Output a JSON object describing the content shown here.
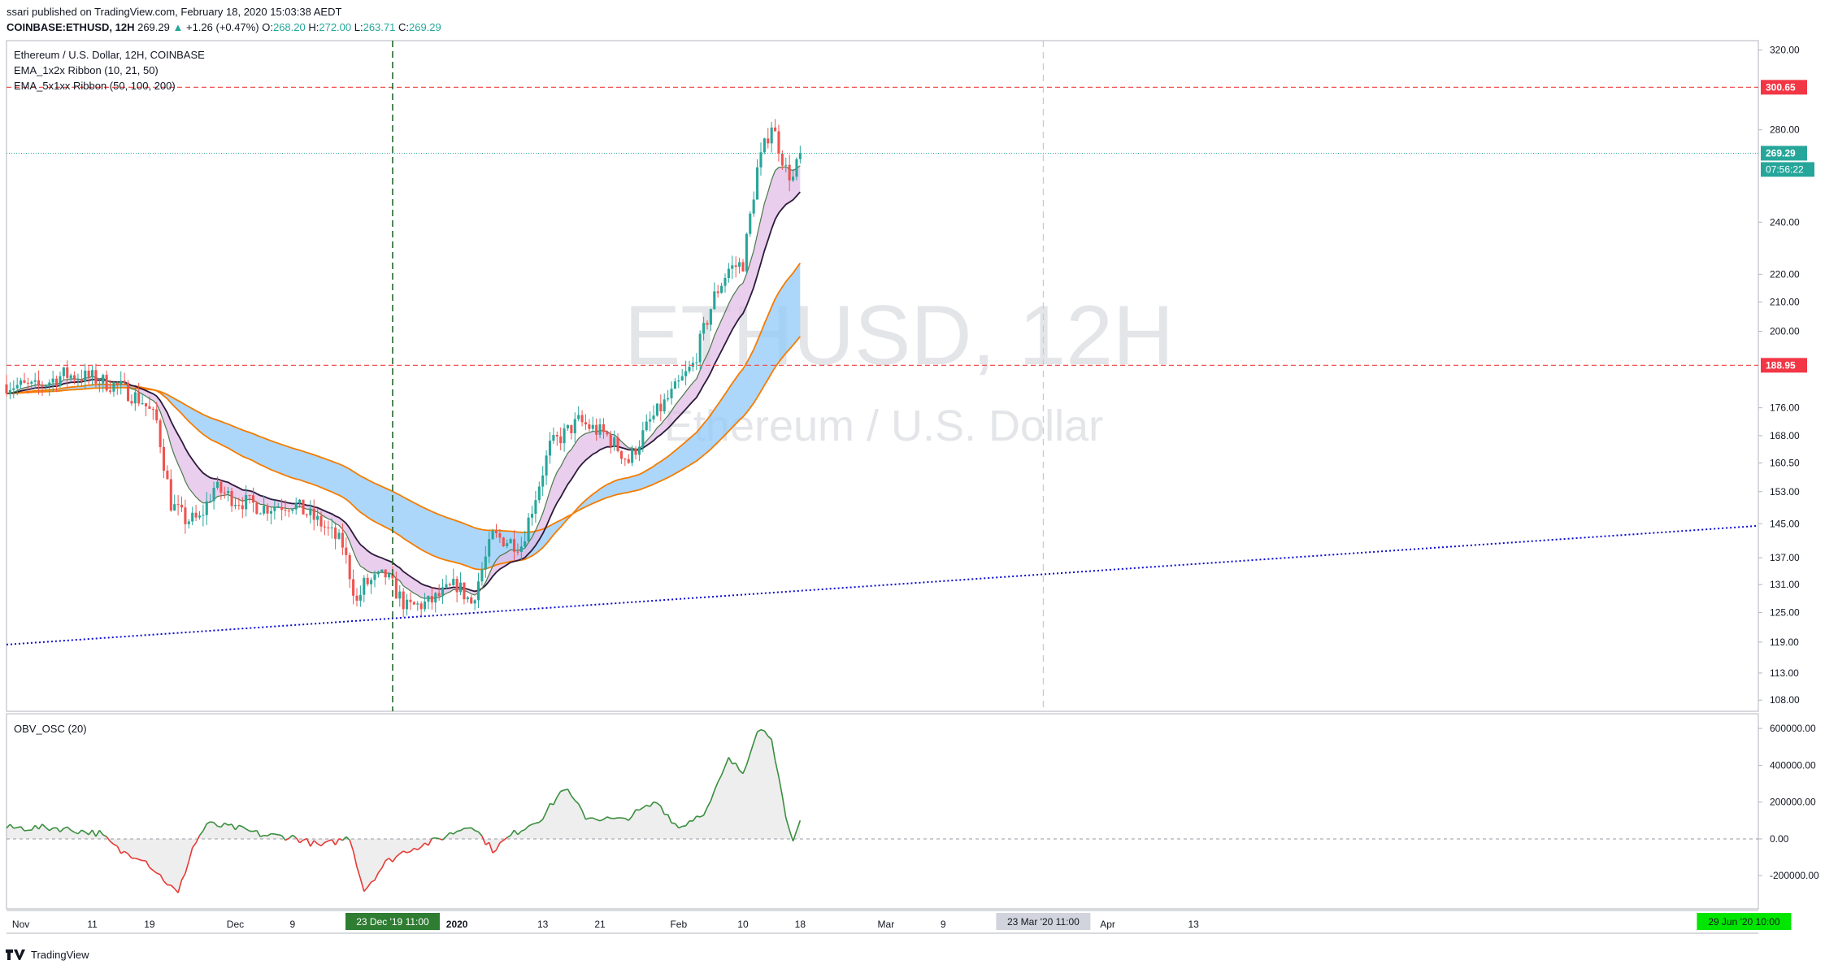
{
  "header": {
    "publisher_line": "ssari published on TradingView.com, February 18, 2020 15:03:38 AEDT",
    "symbol": "COINBASE:ETHUSD, 12H",
    "last": "269.29",
    "change_arrow": "▲",
    "change": "+1.26 (+0.47%)",
    "o_label": "O:",
    "o": "268.20",
    "h_label": "H:",
    "h": "272.00",
    "l_label": "L:",
    "l": "263.71",
    "c_label": "C:",
    "c": "269.29"
  },
  "legend": {
    "title": "Ethereum / U.S. Dollar, 12H, COINBASE",
    "ind1": "EMA_1x2x Ribbon (10, 21, 50)",
    "ind2": "EMA_5x1xx Ribbon (50, 100, 200)"
  },
  "watermark": {
    "symbol": "ETHUSD, 12H",
    "name": "Ethereum / U.S. Dollar"
  },
  "osc_legend": "OBV_OSC (20)",
  "footer": {
    "brand": "TradingView"
  },
  "colors": {
    "up": "#26a69a",
    "down": "#ef5350",
    "ribbon_fast": "#e1bee7",
    "ribbon_slow": "#90caf9",
    "ema_orange": "#f57c00",
    "ema_dark": "#2c1a3a",
    "hline": "#ef5350",
    "trend": "#0a0ad0",
    "osc_pos": "#388e3c",
    "osc_neg": "#e53935",
    "price_tag": "#26a69a",
    "vline": "#1b5e20"
  },
  "chart_data": {
    "type": "candlestick",
    "symbol": "COINBASE:ETHUSD",
    "interval": "12H",
    "scale": "log",
    "ylim": [
      106,
      325
    ],
    "y_ticks": [
      "320.00",
      "280.00",
      "240.00",
      "220.00",
      "210.00",
      "200.00",
      "176.00",
      "168.00",
      "160.50",
      "153.00",
      "145.00",
      "137.00",
      "131.00",
      "125.00",
      "119.00",
      "113.00",
      "108.00"
    ],
    "x_ticks": [
      "Nov",
      "11",
      "19",
      "Dec",
      "9",
      "2020",
      "13",
      "21",
      "Feb",
      "10",
      "18",
      "Mar",
      "9",
      "Apr",
      "13"
    ],
    "x_range": [
      "2019-10-30",
      "2020-07-01"
    ],
    "horizontal_levels": [
      300.65,
      188.95
    ],
    "level_labels": [
      "300.65",
      "188.95"
    ],
    "last_price": "269.29",
    "countdown": "07:56:22",
    "crosshair_time": "23 Dec '19   11:00",
    "markers": [
      {
        "label": "23 Mar '20   11:00"
      },
      {
        "label": "29 Jun '20   10:00"
      }
    ],
    "trendline": {
      "start": {
        "date": "2019-10-30",
        "price": 118.5
      },
      "end": {
        "date": "2020-07-01",
        "price": 144.5
      }
    },
    "price_path": [
      {
        "date": "2019-10-30",
        "price": 183
      },
      {
        "date": "2019-11-03",
        "price": 182
      },
      {
        "date": "2019-11-07",
        "price": 186
      },
      {
        "date": "2019-11-11",
        "price": 185
      },
      {
        "date": "2019-11-15",
        "price": 182
      },
      {
        "date": "2019-11-18",
        "price": 178
      },
      {
        "date": "2019-11-20",
        "price": 172
      },
      {
        "date": "2019-11-22",
        "price": 150
      },
      {
        "date": "2019-11-24",
        "price": 146
      },
      {
        "date": "2019-11-26",
        "price": 146
      },
      {
        "date": "2019-11-28",
        "price": 154
      },
      {
        "date": "2019-12-01",
        "price": 151
      },
      {
        "date": "2019-12-05",
        "price": 149
      },
      {
        "date": "2019-12-09",
        "price": 150
      },
      {
        "date": "2019-12-13",
        "price": 145
      },
      {
        "date": "2019-12-16",
        "price": 140
      },
      {
        "date": "2019-12-18",
        "price": 127
      },
      {
        "date": "2019-12-19",
        "price": 131
      },
      {
        "date": "2019-12-22",
        "price": 133
      },
      {
        "date": "2019-12-25",
        "price": 126
      },
      {
        "date": "2019-12-28",
        "price": 127
      },
      {
        "date": "2020-01-01",
        "price": 131
      },
      {
        "date": "2020-01-03",
        "price": 127
      },
      {
        "date": "2020-01-06",
        "price": 142
      },
      {
        "date": "2020-01-10",
        "price": 140
      },
      {
        "date": "2020-01-14",
        "price": 165
      },
      {
        "date": "2020-01-18",
        "price": 172
      },
      {
        "date": "2020-01-22",
        "price": 168
      },
      {
        "date": "2020-01-25",
        "price": 161
      },
      {
        "date": "2020-01-28",
        "price": 172
      },
      {
        "date": "2020-01-31",
        "price": 180
      },
      {
        "date": "2020-02-03",
        "price": 189
      },
      {
        "date": "2020-02-06",
        "price": 212
      },
      {
        "date": "2020-02-08",
        "price": 222
      },
      {
        "date": "2020-02-10",
        "price": 224
      },
      {
        "date": "2020-02-12",
        "price": 262
      },
      {
        "date": "2020-02-14",
        "price": 283
      },
      {
        "date": "2020-02-16",
        "price": 262
      },
      {
        "date": "2020-02-17",
        "price": 258
      },
      {
        "date": "2020-02-18",
        "price": 269.29
      }
    ],
    "osc": {
      "ylim": [
        -380000,
        680000
      ],
      "y_ticks": [
        "600000.00",
        "400000.00",
        "200000.00",
        "0.00",
        "-200000.00"
      ],
      "values": [
        {
          "date": "2019-10-30",
          "value": 60000
        },
        {
          "date": "2019-11-06",
          "value": 60000
        },
        {
          "date": "2019-11-12",
          "value": 30000
        },
        {
          "date": "2019-11-15",
          "value": -70000
        },
        {
          "date": "2019-11-18",
          "value": -100000
        },
        {
          "date": "2019-11-21",
          "value": -220000
        },
        {
          "date": "2019-11-23",
          "value": -300000
        },
        {
          "date": "2019-11-25",
          "value": -50000
        },
        {
          "date": "2019-11-27",
          "value": 80000
        },
        {
          "date": "2019-12-01",
          "value": 60000
        },
        {
          "date": "2019-12-05",
          "value": 20000
        },
        {
          "date": "2019-12-09",
          "value": 10000
        },
        {
          "date": "2019-12-13",
          "value": -40000
        },
        {
          "date": "2019-12-17",
          "value": 10000
        },
        {
          "date": "2019-12-19",
          "value": -280000
        },
        {
          "date": "2019-12-22",
          "value": -130000
        },
        {
          "date": "2019-12-25",
          "value": -60000
        },
        {
          "date": "2019-12-29",
          "value": -10000
        },
        {
          "date": "2020-01-03",
          "value": 80000
        },
        {
          "date": "2020-01-06",
          "value": -60000
        },
        {
          "date": "2020-01-09",
          "value": 30000
        },
        {
          "date": "2020-01-13",
          "value": 120000
        },
        {
          "date": "2020-01-16",
          "value": 280000
        },
        {
          "date": "2020-01-19",
          "value": 120000
        },
        {
          "date": "2020-01-24",
          "value": 100000
        },
        {
          "date": "2020-01-29",
          "value": 200000
        },
        {
          "date": "2020-02-01",
          "value": 60000
        },
        {
          "date": "2020-02-05",
          "value": 160000
        },
        {
          "date": "2020-02-08",
          "value": 430000
        },
        {
          "date": "2020-02-10",
          "value": 360000
        },
        {
          "date": "2020-02-12",
          "value": 600000
        },
        {
          "date": "2020-02-14",
          "value": 560000
        },
        {
          "date": "2020-02-16",
          "value": 100000
        },
        {
          "date": "2020-02-17",
          "value": -30000
        },
        {
          "date": "2020-02-18",
          "value": 100000
        }
      ]
    }
  }
}
